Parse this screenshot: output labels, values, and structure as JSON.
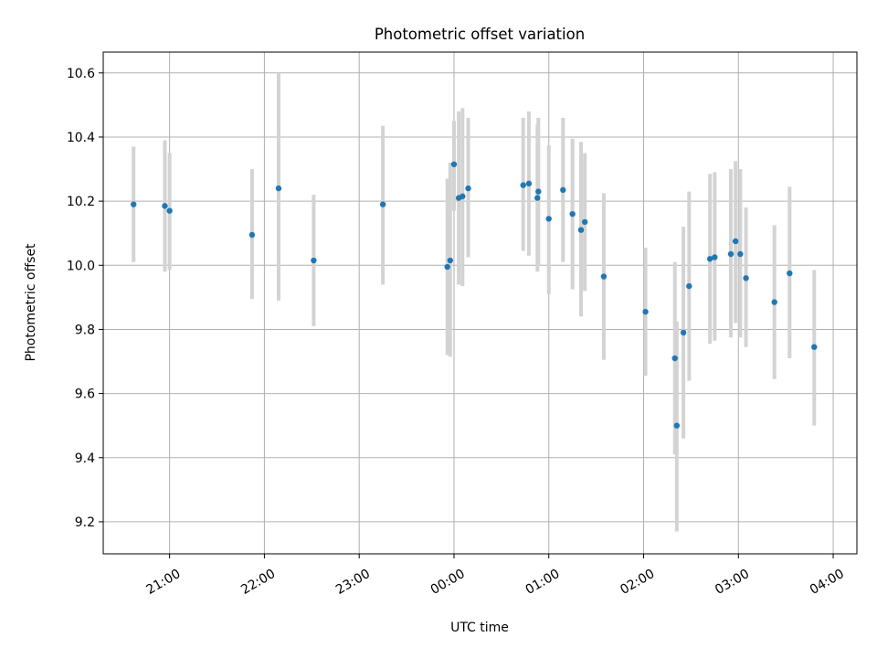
{
  "chart_data": {
    "type": "scatter",
    "title": "Photometric offset variation",
    "xlabel": "UTC time",
    "ylabel": "Photometric offset",
    "x_unit": "hours (UTC, values past 24 are the next day)",
    "xlim": [
      20.3,
      28.25
    ],
    "ylim": [
      9.1,
      10.665
    ],
    "x_ticks": [
      {
        "value": 21,
        "label": "21:00"
      },
      {
        "value": 22,
        "label": "22:00"
      },
      {
        "value": 23,
        "label": "23:00"
      },
      {
        "value": 24,
        "label": "00:00"
      },
      {
        "value": 25,
        "label": "01:00"
      },
      {
        "value": 26,
        "label": "02:00"
      },
      {
        "value": 27,
        "label": "03:00"
      },
      {
        "value": 28,
        "label": "04:00"
      }
    ],
    "y_ticks": [
      {
        "value": 9.2,
        "label": "9.2"
      },
      {
        "value": 9.4,
        "label": "9.4"
      },
      {
        "value": 9.6,
        "label": "9.6"
      },
      {
        "value": 9.8,
        "label": "9.8"
      },
      {
        "value": 10.0,
        "label": "10.0"
      },
      {
        "value": 10.2,
        "label": "10.2"
      },
      {
        "value": 10.4,
        "label": "10.4"
      },
      {
        "value": 10.6,
        "label": "10.6"
      }
    ],
    "grid": true,
    "colors": {
      "point": "#1f77b4",
      "errorbar": "#d3d3d3",
      "grid": "#b0b0b0"
    },
    "points": [
      {
        "x": 20.62,
        "y": 10.19,
        "lo": 10.01,
        "hi": 10.37
      },
      {
        "x": 20.95,
        "y": 10.185,
        "lo": 9.98,
        "hi": 10.39
      },
      {
        "x": 21.0,
        "y": 10.17,
        "lo": 9.985,
        "hi": 10.35
      },
      {
        "x": 21.87,
        "y": 10.095,
        "lo": 9.895,
        "hi": 10.3
      },
      {
        "x": 22.15,
        "y": 10.24,
        "lo": 9.89,
        "hi": 10.6
      },
      {
        "x": 22.52,
        "y": 10.015,
        "lo": 9.81,
        "hi": 10.22
      },
      {
        "x": 23.25,
        "y": 10.19,
        "lo": 9.94,
        "hi": 10.435
      },
      {
        "x": 23.93,
        "y": 9.995,
        "lo": 9.72,
        "hi": 10.27
      },
      {
        "x": 23.96,
        "y": 10.015,
        "lo": 9.715,
        "hi": 10.32
      },
      {
        "x": 24.0,
        "y": 10.315,
        "lo": 10.17,
        "hi": 10.45
      },
      {
        "x": 24.05,
        "y": 10.21,
        "lo": 9.94,
        "hi": 10.48
      },
      {
        "x": 24.09,
        "y": 10.215,
        "lo": 9.935,
        "hi": 10.49
      },
      {
        "x": 24.15,
        "y": 10.24,
        "lo": 10.025,
        "hi": 10.46
      },
      {
        "x": 24.73,
        "y": 10.25,
        "lo": 10.045,
        "hi": 10.46
      },
      {
        "x": 24.79,
        "y": 10.255,
        "lo": 10.03,
        "hi": 10.48
      },
      {
        "x": 24.88,
        "y": 10.21,
        "lo": 9.98,
        "hi": 10.44
      },
      {
        "x": 24.89,
        "y": 10.23,
        "lo": 10.0,
        "hi": 10.46
      },
      {
        "x": 25.0,
        "y": 10.145,
        "lo": 9.91,
        "hi": 10.375
      },
      {
        "x": 25.15,
        "y": 10.235,
        "lo": 10.01,
        "hi": 10.46
      },
      {
        "x": 25.25,
        "y": 10.16,
        "lo": 9.925,
        "hi": 10.395
      },
      {
        "x": 25.34,
        "y": 10.11,
        "lo": 9.84,
        "hi": 10.385
      },
      {
        "x": 25.38,
        "y": 10.135,
        "lo": 9.92,
        "hi": 10.35
      },
      {
        "x": 25.58,
        "y": 9.965,
        "lo": 9.705,
        "hi": 10.225
      },
      {
        "x": 26.02,
        "y": 9.855,
        "lo": 9.655,
        "hi": 10.055
      },
      {
        "x": 26.33,
        "y": 9.71,
        "lo": 9.41,
        "hi": 10.01
      },
      {
        "x": 26.35,
        "y": 9.5,
        "lo": 9.17,
        "hi": 9.825
      },
      {
        "x": 26.42,
        "y": 9.79,
        "lo": 9.46,
        "hi": 10.12
      },
      {
        "x": 26.48,
        "y": 9.935,
        "lo": 9.64,
        "hi": 10.23
      },
      {
        "x": 26.7,
        "y": 10.02,
        "lo": 9.755,
        "hi": 10.285
      },
      {
        "x": 26.75,
        "y": 10.025,
        "lo": 9.765,
        "hi": 10.29
      },
      {
        "x": 26.92,
        "y": 10.035,
        "lo": 9.775,
        "hi": 10.3
      },
      {
        "x": 26.97,
        "y": 10.075,
        "lo": 9.82,
        "hi": 10.325
      },
      {
        "x": 27.02,
        "y": 10.035,
        "lo": 9.775,
        "hi": 10.3
      },
      {
        "x": 27.08,
        "y": 9.96,
        "lo": 9.745,
        "hi": 10.18
      },
      {
        "x": 27.38,
        "y": 9.885,
        "lo": 9.645,
        "hi": 10.125
      },
      {
        "x": 27.54,
        "y": 9.975,
        "lo": 9.71,
        "hi": 10.245
      },
      {
        "x": 27.8,
        "y": 9.745,
        "lo": 9.5,
        "hi": 9.985
      }
    ]
  }
}
